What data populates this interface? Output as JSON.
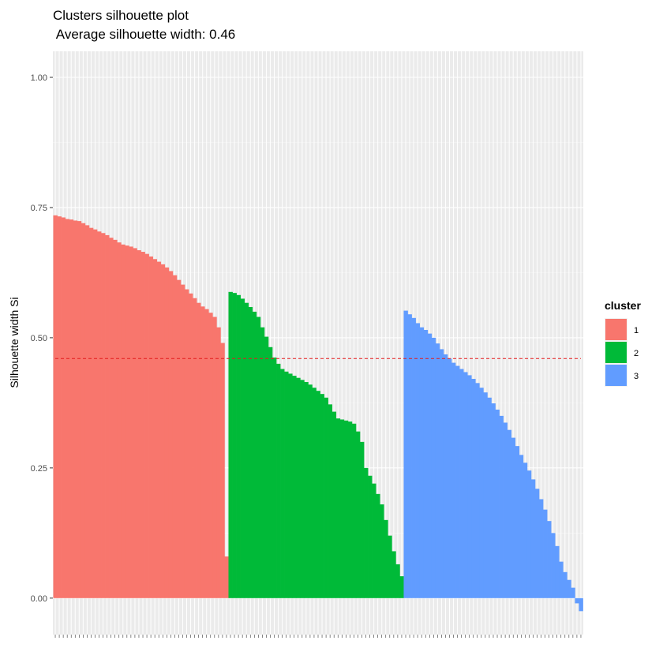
{
  "chart_data": {
    "type": "bar",
    "title": "Clusters silhouette plot",
    "subtitle": " Average silhouette width: 0.46",
    "ylabel": "Silhouette width Si",
    "xlabel": "",
    "ylim": [
      -0.07,
      1.05
    ],
    "yticks": [
      0.0,
      0.25,
      0.5,
      0.75,
      1.0
    ],
    "ytick_labels": [
      "0.00",
      "0.25",
      "0.50",
      "0.75",
      "1.00"
    ],
    "reference_line": {
      "value": 0.46,
      "color": "#E41A1C",
      "style": "dashed"
    },
    "grid": true,
    "legend": {
      "title": "cluster",
      "position": "right",
      "entries": [
        {
          "label": "1",
          "color": "#F8766D"
        },
        {
          "label": "2",
          "color": "#00BA38"
        },
        {
          "label": "3",
          "color": "#619CFF"
        }
      ]
    },
    "series": [
      {
        "cluster": "1",
        "color": "#F8766D",
        "values": [
          0.735,
          0.733,
          0.731,
          0.728,
          0.727,
          0.725,
          0.724,
          0.72,
          0.716,
          0.711,
          0.708,
          0.704,
          0.701,
          0.697,
          0.692,
          0.688,
          0.683,
          0.679,
          0.677,
          0.675,
          0.672,
          0.668,
          0.665,
          0.661,
          0.656,
          0.651,
          0.646,
          0.641,
          0.635,
          0.628,
          0.62,
          0.611,
          0.602,
          0.593,
          0.585,
          0.576,
          0.567,
          0.56,
          0.555,
          0.548,
          0.54,
          0.52,
          0.49,
          0.08
        ]
      },
      {
        "cluster": "2",
        "color": "#00BA38",
        "values": [
          0.588,
          0.586,
          0.582,
          0.575,
          0.567,
          0.559,
          0.55,
          0.54,
          0.52,
          0.502,
          0.482,
          0.462,
          0.45,
          0.44,
          0.435,
          0.431,
          0.427,
          0.423,
          0.419,
          0.415,
          0.41,
          0.404,
          0.398,
          0.392,
          0.385,
          0.372,
          0.358,
          0.345,
          0.343,
          0.341,
          0.339,
          0.335,
          0.32,
          0.3,
          0.25,
          0.235,
          0.22,
          0.2,
          0.18,
          0.15,
          0.12,
          0.09,
          0.065,
          0.042
        ]
      },
      {
        "cluster": "3",
        "color": "#619CFF",
        "values": [
          0.552,
          0.545,
          0.538,
          0.528,
          0.52,
          0.515,
          0.508,
          0.5,
          0.489,
          0.478,
          0.468,
          0.46,
          0.452,
          0.446,
          0.44,
          0.434,
          0.428,
          0.421,
          0.413,
          0.404,
          0.395,
          0.385,
          0.374,
          0.362,
          0.35,
          0.337,
          0.323,
          0.308,
          0.292,
          0.275,
          0.26,
          0.245,
          0.228,
          0.21,
          0.19,
          0.17,
          0.148,
          0.125,
          0.1,
          0.07,
          0.05,
          0.035,
          0.02,
          -0.01,
          -0.025
        ]
      }
    ]
  }
}
